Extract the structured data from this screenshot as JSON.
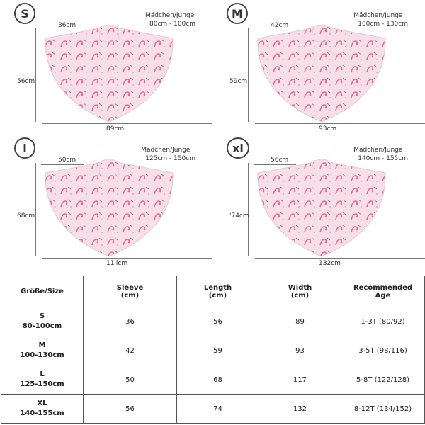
{
  "panels": [
    {
      "size": "S",
      "label": "Mädchen/Junge",
      "range": "80cm - 100cm",
      "sleeve": "36cm",
      "length": "56cm",
      "width": "89cm"
    },
    {
      "size": "M",
      "label": "Mädchen/Junge",
      "range": "100cm - 130cm",
      "sleeve": "42cm",
      "length": "59cm",
      "width": "93cm"
    },
    {
      "size": "l",
      "label": "Mädchen/Junge",
      "range": "125cm - 150cm",
      "sleeve": "50cm",
      "length": "68cm",
      "width": "11'lcm"
    },
    {
      "size": "xl",
      "label": "Mädchen/Junge",
      "range": "140cm - 155cm",
      "sleeve": "56cm",
      "length": "'74cm",
      "width": "132cm"
    }
  ],
  "table": {
    "headers": [
      "Größe/Size",
      "Sleeve\n(cm)",
      "Length\n(cm)",
      "Width\n(cm)",
      "Recommended\nAge"
    ],
    "rows": [
      {
        "size": "S",
        "range": "80-100cm",
        "sleeve": "36",
        "length": "56",
        "width": "89",
        "age": "1-3T (80/92)"
      },
      {
        "size": "M",
        "range": "100-130cm",
        "sleeve": "42",
        "length": "59",
        "width": "93",
        "age": "3-5T (98/116)"
      },
      {
        "size": "L",
        "range": "125-150cm",
        "sleeve": "50",
        "length": "68",
        "width": "117",
        "age": "5-8T (122/128)"
      },
      {
        "size": "XL",
        "range": "140-155cm",
        "sleeve": "56",
        "length": "74",
        "width": "132",
        "age": "8-12T (134/152)"
      }
    ]
  },
  "colors": {
    "fabric": "#f7dfe8",
    "flamingo": "#e8679a",
    "line": "#777777"
  }
}
